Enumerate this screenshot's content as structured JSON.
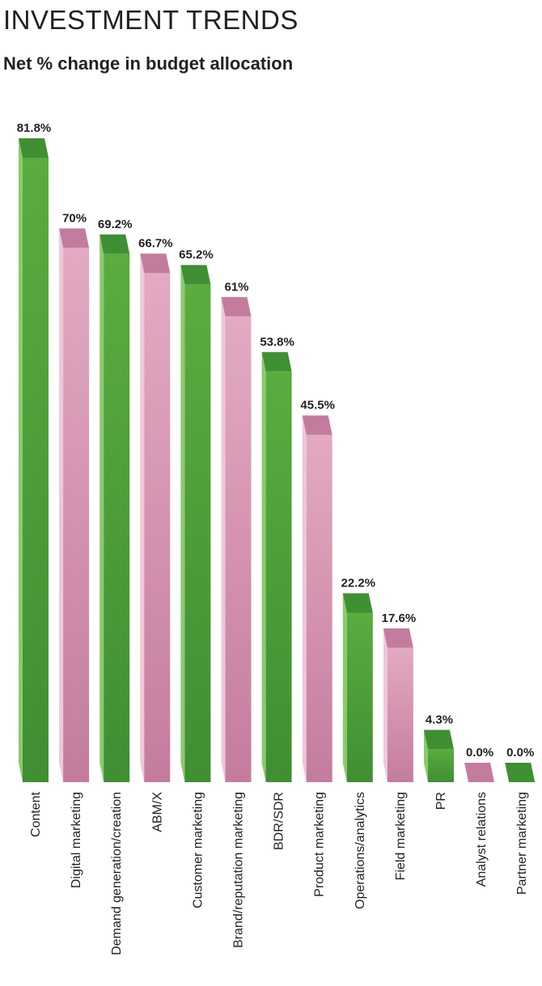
{
  "header": {
    "title": "INVESTMENT TRENDS",
    "subtitle": "Net % change in budget allocation"
  },
  "colors": {
    "green": "#5aac3e",
    "green_dark": "#3f8f33",
    "pink": "#e3aac2",
    "pink_dark": "#c47c9e"
  },
  "chart_data": {
    "type": "bar",
    "title": "Net % change in budget allocation",
    "categories": [
      "Content",
      "Digital marketing",
      "Demand generation/creation",
      "ABM/X",
      "Customer marketing",
      "Brand/reputation marketing",
      "BDR/SDR",
      "Product marketing",
      "Operations/analytics",
      "Field marketing",
      "PR",
      "Analyst relations",
      "Partner marketing"
    ],
    "values": [
      81.8,
      70,
      69.2,
      66.7,
      65.2,
      61,
      53.8,
      45.5,
      22.2,
      17.6,
      4.3,
      0.0,
      0.0
    ],
    "data_labels": [
      "81.8%",
      "70%",
      "69.2%",
      "66.7%",
      "65.2%",
      "61%",
      "53.8%",
      "45.5%",
      "22.2%",
      "17.6%",
      "4.3%",
      "0.0%",
      "0.0%"
    ],
    "bar_colors": [
      "green",
      "pink",
      "green",
      "pink",
      "green",
      "pink",
      "green",
      "pink",
      "green",
      "pink",
      "green",
      "pink",
      "green"
    ],
    "ylim": [
      0,
      81.8
    ],
    "grid": false,
    "legend": "none"
  }
}
